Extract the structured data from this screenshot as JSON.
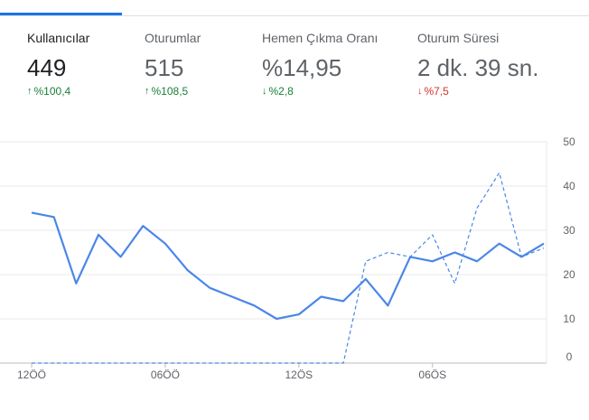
{
  "metrics": [
    {
      "label": "Kullanıcılar",
      "value": "449",
      "delta": "%100,4",
      "direction": "up",
      "active": true
    },
    {
      "label": "Oturumlar",
      "value": "515",
      "delta": "%108,5",
      "direction": "up",
      "active": false
    },
    {
      "label": "Hemen Çıkma Oranı",
      "value": "%14,95",
      "delta": "%2,8",
      "direction": "down-good",
      "active": false
    },
    {
      "label": "Oturum Süresi",
      "value": "2 dk. 39 sn.",
      "delta": "%7,5",
      "direction": "down-bad",
      "active": false
    }
  ],
  "colors": {
    "accent": "#1a73e8",
    "positive": "#188038",
    "negative": "#d93025"
  },
  "chart_data": {
    "type": "line",
    "x_tick_labels": [
      "12ÖÖ",
      "06ÖÖ",
      "12ÖS",
      "06ÖS"
    ],
    "x_tick_index": [
      0,
      6,
      12,
      18
    ],
    "ylim": [
      0,
      50
    ],
    "y_ticks": [
      0,
      10,
      20,
      30,
      40,
      50
    ],
    "grid": true,
    "series": [
      {
        "style": "solid",
        "color": "#4a86e8",
        "values": [
          34,
          33,
          18,
          29,
          24,
          31,
          27,
          21,
          17,
          15,
          13,
          10,
          11,
          15,
          14,
          19,
          13,
          24,
          23,
          25,
          23,
          27,
          24,
          27
        ]
      },
      {
        "style": "dashed",
        "color": "#4a86e8",
        "values": [
          0,
          0,
          0,
          0,
          0,
          0,
          0,
          0,
          0,
          0,
          0,
          0,
          0,
          0,
          0,
          23,
          25,
          24,
          29,
          18,
          35,
          43,
          24,
          26
        ]
      }
    ]
  }
}
